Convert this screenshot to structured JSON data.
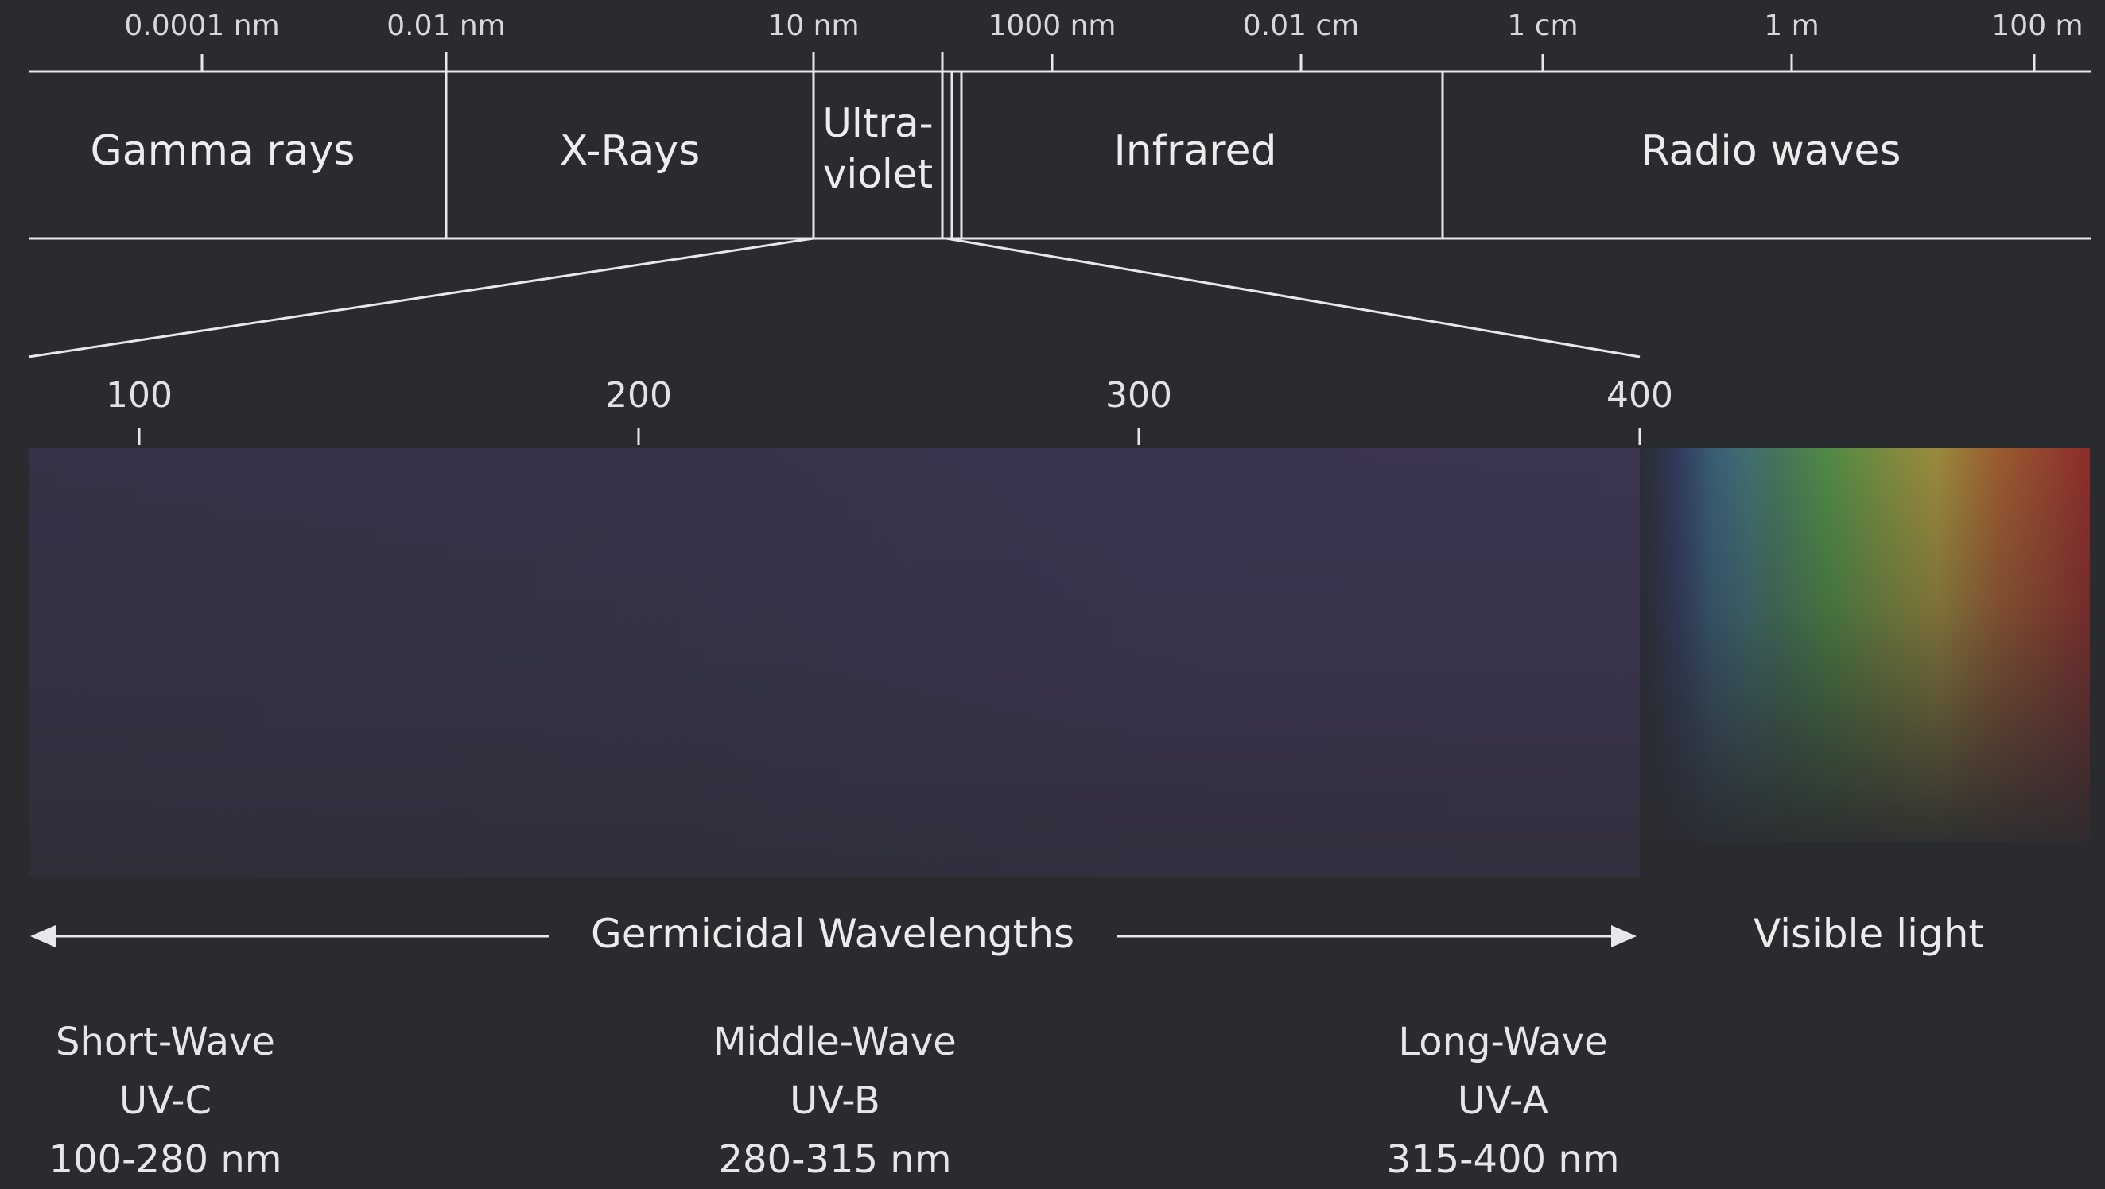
{
  "colors": {
    "background": "#2a2b2f",
    "line": "#e8e8ec",
    "uv_fill": "#3a3450"
  },
  "scale": [
    "0.0001 nm",
    "0.01 nm",
    "10 nm",
    "1000 nm",
    "0.01 cm",
    "1 cm",
    "1 m",
    "100 m"
  ],
  "bands": {
    "gamma": "Gamma rays",
    "xray": "X-Rays",
    "uv_line1": "Ultra-",
    "uv_line2": "violet",
    "infrared": "Infrared",
    "radio": "Radio waves"
  },
  "uv_ticks": [
    "100",
    "200",
    "300",
    "400"
  ],
  "germicidal": "Germicidal Wavelengths",
  "visible": "Visible light",
  "categories": [
    {
      "name": "Short-Wave",
      "band": "UV-C",
      "range": "100-280 nm"
    },
    {
      "name": "Middle-Wave",
      "band": "UV-B",
      "range": "280-315 nm"
    },
    {
      "name": "Long-Wave",
      "band": "UV-A",
      "range": "315-400 nm"
    }
  ]
}
